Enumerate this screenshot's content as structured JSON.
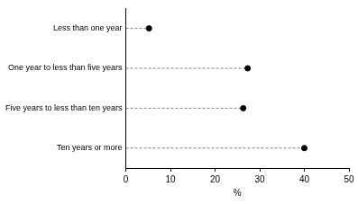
{
  "chart_data": {
    "type": "dot",
    "orientation": "horizontal",
    "categories": [
      "Less than one year",
      "One year to less than five years",
      "Five years to less than ten years",
      "Ten years or more"
    ],
    "values": [
      5.2,
      27.3,
      26.3,
      40.0
    ],
    "xlabel": "%",
    "xlim": [
      0,
      50
    ],
    "xticks": [
      0,
      10,
      20,
      30,
      40,
      50
    ],
    "color": "#000000",
    "marker": "circle",
    "line_style": "dashed",
    "grid": false
  }
}
